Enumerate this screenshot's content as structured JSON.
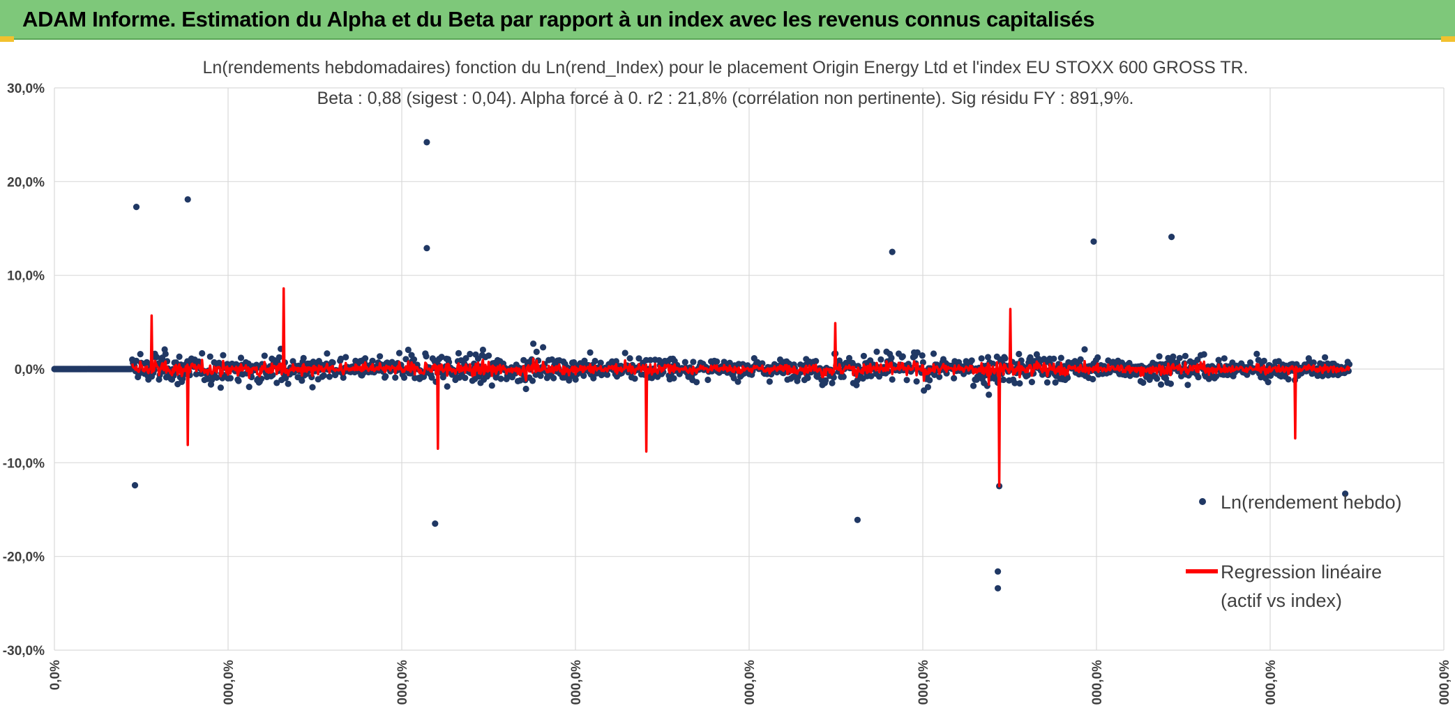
{
  "banner": {
    "title": "ADAM Informe. Estimation du Alpha et du Beta par rapport à un index avec les revenus connus capitalisés"
  },
  "colors": {
    "banner_bg": "#7ec87a",
    "points": "#203864",
    "regression": "#ff0000",
    "grid": "#d9d9d9",
    "corner_accent": "#f2c12e"
  },
  "chart_data": {
    "type": "scatter",
    "title": "Ln(rendements hebdomadaires) fonction du Ln(rend_Index) pour le placement Origin Energy Ltd et l'index EU STOXX 600 GROSS TR.",
    "subtitle": "Beta : 0,88 (sigest : 0,04). Alpha forcé à 0. r2 : 21,8% (corrélation non pertinente). Sig résidu FY : 891,9%.",
    "ylim": [
      -0.3,
      0.3
    ],
    "y_ticks": [
      {
        "value": 0.3,
        "label": "30,0%"
      },
      {
        "value": 0.2,
        "label": "20,0%"
      },
      {
        "value": 0.1,
        "label": "10,0%"
      },
      {
        "value": 0.0,
        "label": "0,0%"
      },
      {
        "value": -0.1,
        "label": "-10,0%"
      },
      {
        "value": -0.2,
        "label": "-20,0%"
      },
      {
        "value": -0.3,
        "label": "-30,0%"
      }
    ],
    "x_ticks": [
      "0,0%",
      "000,0%",
      "000,0%",
      "000,0%",
      "000,0%",
      "000,0%",
      "000,0%",
      "000,0%",
      "000,0%"
    ],
    "grid": true,
    "legend_position": "right",
    "series": [
      {
        "name": "Ln(rendement hebdo)",
        "kind": "points",
        "color": "#203864"
      },
      {
        "name": "Regression linéaire\n(actif vs index)",
        "kind": "line",
        "color": "#ff0000"
      }
    ],
    "notable_points": [
      {
        "x_index": 0.268,
        "y": 0.242
      },
      {
        "x_index": 0.059,
        "y": 0.173
      },
      {
        "x_index": 0.096,
        "y": 0.181
      },
      {
        "x_index": 0.268,
        "y": 0.129
      },
      {
        "x_index": 0.603,
        "y": 0.125
      },
      {
        "x_index": 0.748,
        "y": 0.136
      },
      {
        "x_index": 0.804,
        "y": 0.141
      },
      {
        "x_index": 0.274,
        "y": -0.165
      },
      {
        "x_index": 0.578,
        "y": -0.161
      },
      {
        "x_index": 0.679,
        "y": -0.216
      },
      {
        "x_index": 0.679,
        "y": -0.234
      },
      {
        "x_index": 0.058,
        "y": -0.124
      },
      {
        "x_index": 0.68,
        "y": -0.125
      },
      {
        "x_index": 0.929,
        "y": -0.133
      }
    ],
    "regression_spikes": [
      {
        "x_index": 0.07,
        "y": 0.057
      },
      {
        "x_index": 0.165,
        "y": 0.086
      },
      {
        "x_index": 0.096,
        "y": -0.081
      },
      {
        "x_index": 0.276,
        "y": -0.085
      },
      {
        "x_index": 0.426,
        "y": -0.088
      },
      {
        "x_index": 0.562,
        "y": 0.049
      },
      {
        "x_index": 0.68,
        "y": -0.125
      },
      {
        "x_index": 0.688,
        "y": 0.064
      },
      {
        "x_index": 0.893,
        "y": -0.074
      }
    ]
  }
}
